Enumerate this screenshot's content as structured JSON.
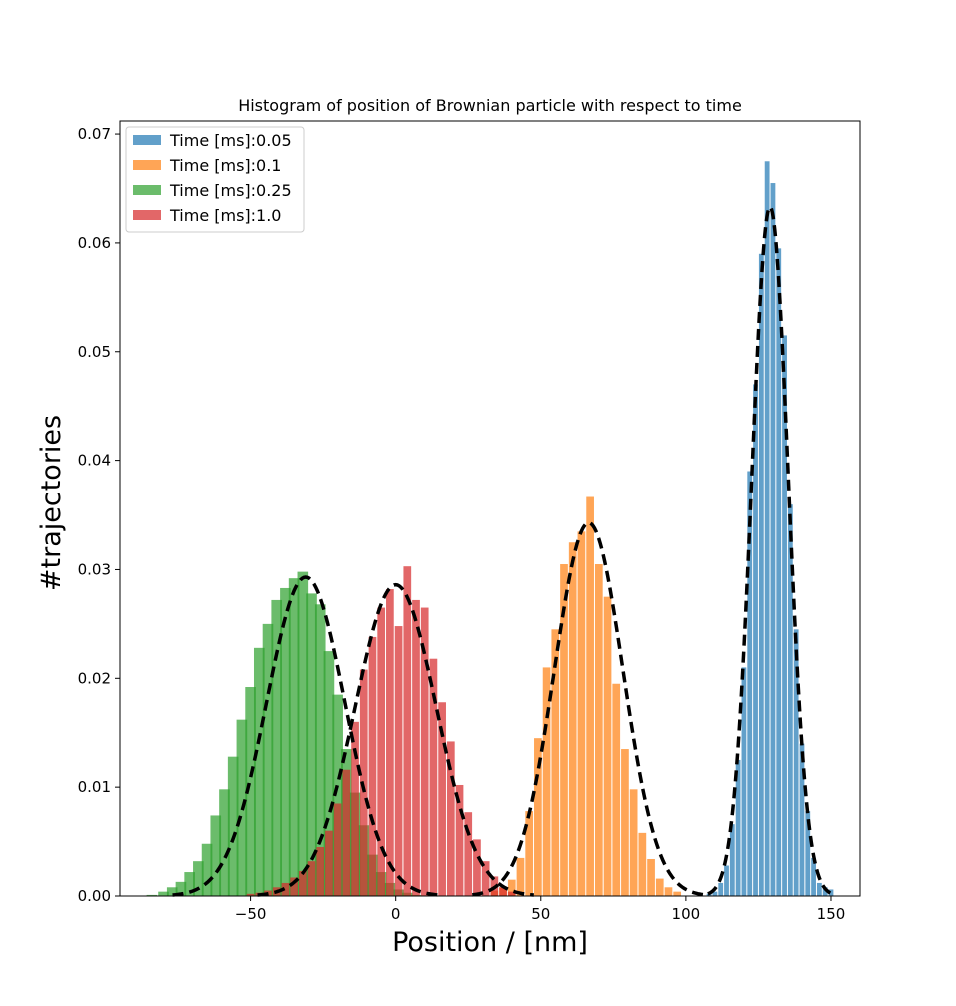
{
  "chart_data": {
    "type": "bar",
    "title": "Histogram of position of Brownian particle with respect to time",
    "xlabel": "Position / [nm]",
    "ylabel": "#trajectories",
    "xlim": [
      -95,
      160
    ],
    "ylim": [
      0,
      0.0712
    ],
    "xticks": [
      -50,
      0,
      50,
      100,
      150
    ],
    "xtick_labels": [
      "−50",
      "0",
      "50",
      "100",
      "150"
    ],
    "yticks": [
      0.0,
      0.01,
      0.02,
      0.03,
      0.04,
      0.05,
      0.06,
      0.07
    ],
    "ytick_labels": [
      "0.00",
      "0.01",
      "0.02",
      "0.03",
      "0.04",
      "0.05",
      "0.06",
      "0.07"
    ],
    "legend_position": "upper-left",
    "grid": false,
    "fit_curve_style": "black dashed gaussian",
    "series": [
      {
        "name": "Time [ms]:0.05",
        "color": "#1f77b4",
        "mean": 129,
        "std": 6.3,
        "peak": 0.0633,
        "bins": [
          [
            108,
            0.0002
          ],
          [
            110,
            0.0004
          ],
          [
            112,
            0.0012
          ],
          [
            114,
            0.0028
          ],
          [
            116,
            0.0066
          ],
          [
            118,
            0.0125
          ],
          [
            120,
            0.021
          ],
          [
            122,
            0.039
          ],
          [
            124,
            0.047
          ],
          [
            126,
            0.059
          ],
          [
            128,
            0.0675
          ],
          [
            130,
            0.0655
          ],
          [
            132,
            0.0595
          ],
          [
            134,
            0.0515
          ],
          [
            136,
            0.036
          ],
          [
            138,
            0.0245
          ],
          [
            140,
            0.014
          ],
          [
            142,
            0.0078
          ],
          [
            144,
            0.0035
          ],
          [
            146,
            0.0012
          ],
          [
            148,
            0.0008
          ],
          [
            150,
            0.0006
          ]
        ]
      },
      {
        "name": "Time [ms]:0.1",
        "color": "#ff7f0e",
        "mean": 66.5,
        "std": 11.8,
        "peak": 0.0343,
        "bins": [
          [
            34,
            0.0005
          ],
          [
            37,
            0.0008
          ],
          [
            40,
            0.0015
          ],
          [
            43,
            0.0035
          ],
          [
            46,
            0.0078
          ],
          [
            49,
            0.0145
          ],
          [
            52,
            0.021
          ],
          [
            55,
            0.0245
          ],
          [
            58,
            0.0305
          ],
          [
            61,
            0.0325
          ],
          [
            64,
            0.0335
          ],
          [
            67,
            0.0367
          ],
          [
            70,
            0.0305
          ],
          [
            73,
            0.0275
          ],
          [
            76,
            0.0195
          ],
          [
            79,
            0.0135
          ],
          [
            82,
            0.0098
          ],
          [
            85,
            0.0058
          ],
          [
            88,
            0.0034
          ],
          [
            91,
            0.0016
          ],
          [
            94,
            0.0008
          ],
          [
            97,
            0.0004
          ]
        ]
      },
      {
        "name": "Time [ms]:0.25",
        "color": "#2ca02c",
        "mean": -31,
        "std": 13.5,
        "peak": 0.0293,
        "bins": [
          [
            -84,
            0.0001
          ],
          [
            -80,
            0.0004
          ],
          [
            -77,
            0.0008
          ],
          [
            -74,
            0.0013
          ],
          [
            -71,
            0.0022
          ],
          [
            -68,
            0.0032
          ],
          [
            -65,
            0.0048
          ],
          [
            -62,
            0.0074
          ],
          [
            -59,
            0.0098
          ],
          [
            -56,
            0.0128
          ],
          [
            -53,
            0.0162
          ],
          [
            -50,
            0.0192
          ],
          [
            -47,
            0.0228
          ],
          [
            -44,
            0.025
          ],
          [
            -41,
            0.0272
          ],
          [
            -38,
            0.0283
          ],
          [
            -35,
            0.0292
          ],
          [
            -32,
            0.0298
          ],
          [
            -29,
            0.0278
          ],
          [
            -26,
            0.0268
          ],
          [
            -23,
            0.0225
          ],
          [
            -20,
            0.0185
          ],
          [
            -17,
            0.0135
          ],
          [
            -14,
            0.0095
          ],
          [
            -11,
            0.0065
          ],
          [
            -8,
            0.0038
          ],
          [
            -5,
            0.0022
          ],
          [
            -2,
            0.0012
          ],
          [
            1,
            0.0006
          ],
          [
            4,
            0.0003
          ],
          [
            7,
            0.0001
          ]
        ]
      },
      {
        "name": "Time [ms]:1.0",
        "color": "#d62728",
        "mean": 0,
        "std": 14,
        "peak": 0.0286,
        "bins": [
          [
            -50,
            0.0002
          ],
          [
            -47,
            0.0003
          ],
          [
            -44,
            0.0005
          ],
          [
            -41,
            0.0008
          ],
          [
            -38,
            0.0012
          ],
          [
            -35,
            0.0017
          ],
          [
            -32,
            0.0023
          ],
          [
            -29,
            0.0032
          ],
          [
            -26,
            0.0045
          ],
          [
            -23,
            0.006
          ],
          [
            -20,
            0.0085
          ],
          [
            -17,
            0.0116
          ],
          [
            -14,
            0.016
          ],
          [
            -11,
            0.0208
          ],
          [
            -8,
            0.0238
          ],
          [
            -5,
            0.0265
          ],
          [
            -2,
            0.0282
          ],
          [
            1,
            0.0248
          ],
          [
            4,
            0.0303
          ],
          [
            7,
            0.0272
          ],
          [
            10,
            0.0265
          ],
          [
            13,
            0.0218
          ],
          [
            16,
            0.0178
          ],
          [
            19,
            0.0142
          ],
          [
            22,
            0.0102
          ],
          [
            25,
            0.0077
          ],
          [
            28,
            0.0052
          ],
          [
            31,
            0.0032
          ],
          [
            34,
            0.0018
          ],
          [
            37,
            0.0008
          ],
          [
            40,
            0.0004
          ]
        ]
      }
    ]
  }
}
